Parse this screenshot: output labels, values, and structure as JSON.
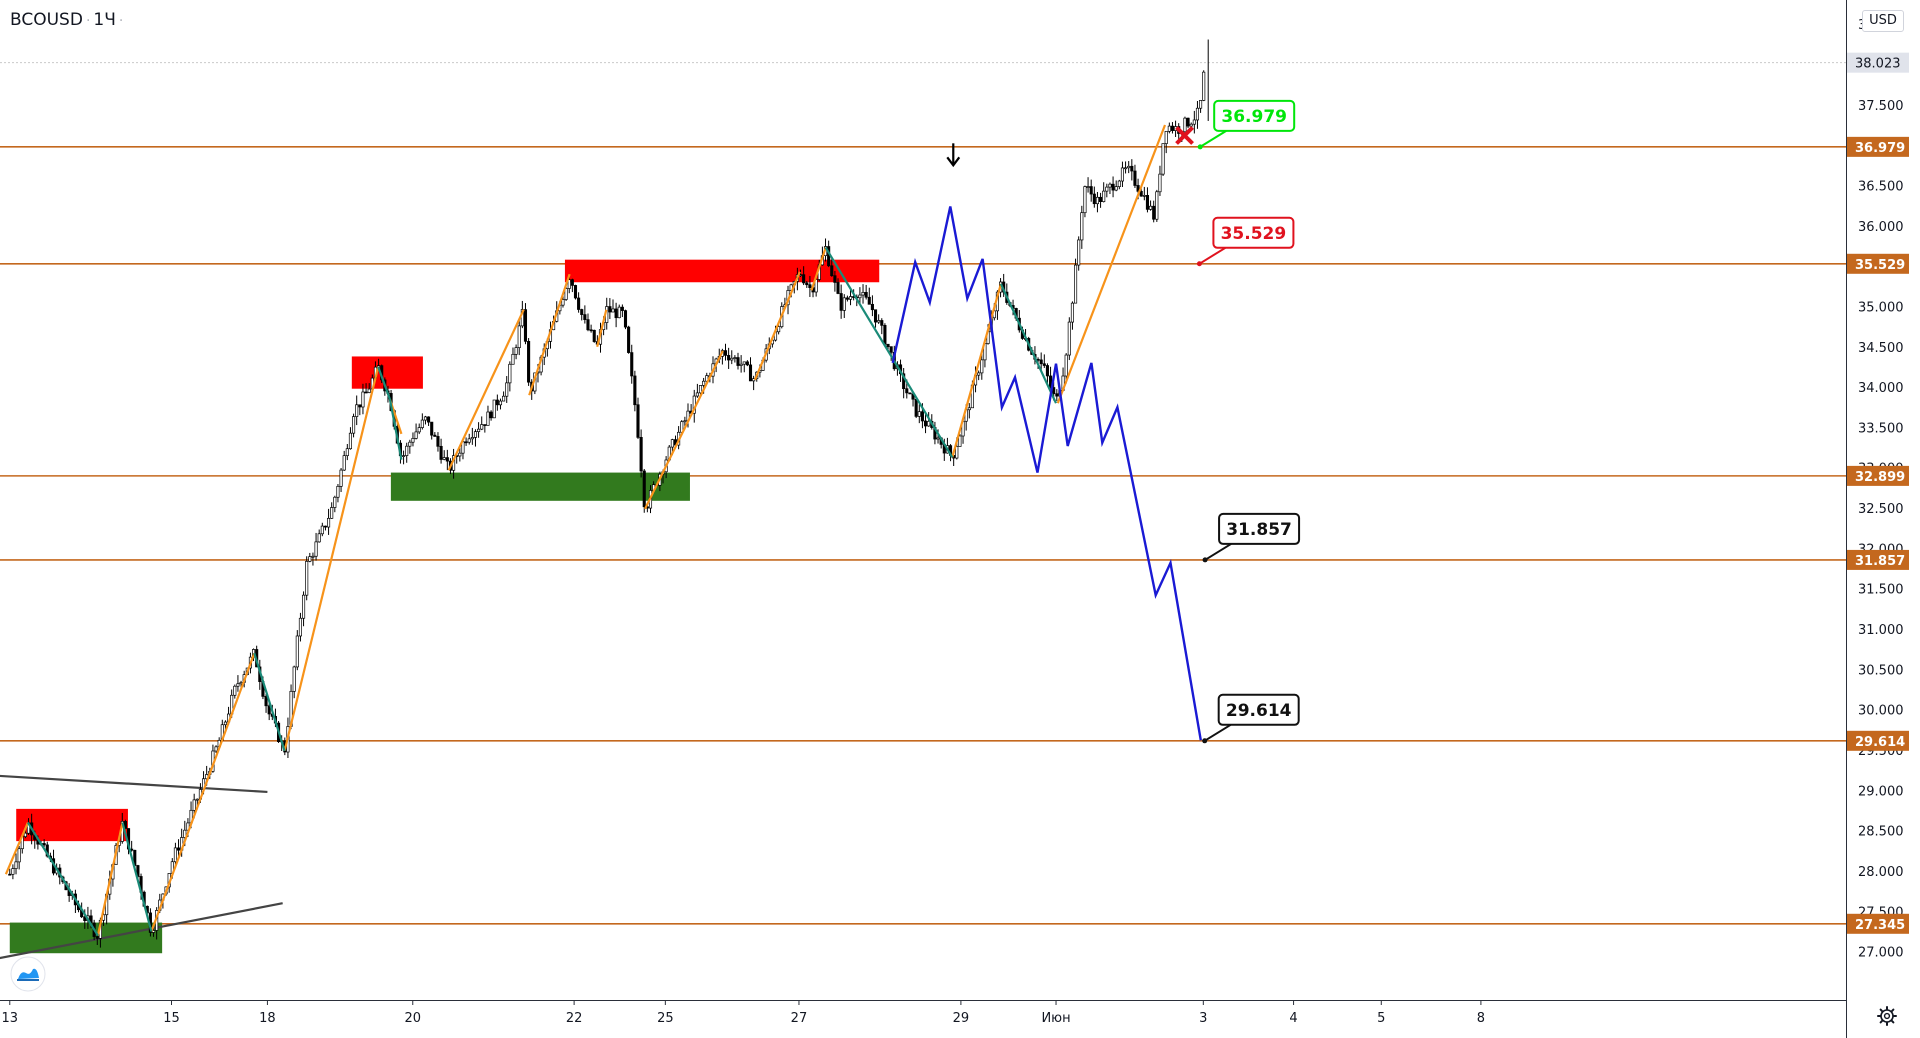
{
  "header": {
    "symbol": "BCOUSD",
    "interval": "1Ч",
    "currency": "USD"
  },
  "icons": {
    "logo": "tradingview-logo-icon",
    "settings": "gear-icon",
    "arrow": "arrow-down-icon",
    "cross": "cross-icon"
  },
  "colors": {
    "level": "#c4681e",
    "candle": "#000000",
    "up_wave": "#f7931a",
    "down_wave": "#1a8a78",
    "forecast": "#1a1ad4",
    "supply": "#ff0000",
    "demand": "#327a1e",
    "trend": "#444444",
    "current_price": "#c9c9c9",
    "label_green": "#00e60a",
    "label_red": "#e0121e",
    "label_black": "#111111"
  },
  "chart_data": {
    "type": "candlestick",
    "ylim": [
      26.4,
      38.8
    ],
    "y_ticks": [
      "27.000",
      "27.500",
      "28.000",
      "28.500",
      "29.000",
      "29.500",
      "30.000",
      "30.500",
      "31.000",
      "31.500",
      "32.000",
      "32.500",
      "33.000",
      "33.500",
      "34.000",
      "34.500",
      "35.000",
      "35.500",
      "36.000",
      "36.500",
      "37.000",
      "37.500",
      "38.000",
      "38.500"
    ],
    "x_ticks": [
      {
        "label": "13",
        "x": 0
      },
      {
        "label": "15",
        "x": 8.28
      },
      {
        "label": "18",
        "x": 13.19
      },
      {
        "label": "20",
        "x": 20.63
      },
      {
        "label": "22",
        "x": 28.89
      },
      {
        "label": "25",
        "x": 33.56
      },
      {
        "label": "27",
        "x": 40.4
      },
      {
        "label": "29",
        "x": 48.69
      },
      {
        "label": "Июн",
        "x": 53.56
      },
      {
        "label": "3",
        "x": 61.1
      },
      {
        "label": "4",
        "x": 65.72
      },
      {
        "label": "5",
        "x": 70.21
      },
      {
        "label": "8",
        "x": 75.31
      }
    ],
    "current_price": 38.023,
    "levels": [
      {
        "value": 36.979,
        "label": "36.979"
      },
      {
        "value": 35.529,
        "label": "35.529"
      },
      {
        "value": 32.899,
        "label": "32.899"
      },
      {
        "value": 31.857,
        "label": "31.857"
      },
      {
        "value": 29.614,
        "label": "29.614"
      },
      {
        "value": 27.345,
        "label": "27.345"
      }
    ],
    "zones": [
      {
        "kind": "supply",
        "x0": 0.33,
        "x1": 6.05,
        "y0": 28.37,
        "y1": 28.77
      },
      {
        "kind": "demand",
        "x0": 0.0,
        "x1": 7.8,
        "y0": 26.98,
        "y1": 27.36
      },
      {
        "kind": "supply",
        "x0": 17.51,
        "x1": 21.15,
        "y0": 33.98,
        "y1": 34.38
      },
      {
        "kind": "demand",
        "x0": 19.51,
        "x1": 34.82,
        "y0": 32.59,
        "y1": 32.94
      },
      {
        "kind": "supply",
        "x0": 28.42,
        "x1": 44.51,
        "y0": 35.3,
        "y1": 35.58
      }
    ],
    "trendlines": [
      {
        "points": [
          [
            -2.0,
            29.2
          ],
          [
            13.19,
            28.98
          ]
        ]
      },
      {
        "points": [
          [
            -2.0,
            26.85
          ],
          [
            13.97,
            27.6
          ]
        ]
      }
    ],
    "up_waves": [
      [
        [
          -0.2,
          27.96
        ],
        [
          0.93,
          28.6
        ]
      ],
      [
        [
          4.51,
          27.2
        ],
        [
          5.77,
          28.6
        ]
      ],
      [
        [
          7.25,
          27.25
        ],
        [
          12.52,
          30.7
        ]
      ],
      [
        [
          14.07,
          29.49
        ],
        [
          18.86,
          34.25
        ]
      ],
      [
        [
          19.46,
          33.85
        ],
        [
          20.05,
          33.42
        ]
      ],
      [
        [
          22.47,
          32.97
        ],
        [
          26.31,
          34.96
        ]
      ],
      [
        [
          26.59,
          33.9
        ],
        [
          28.66,
          35.4
        ]
      ],
      [
        [
          30.07,
          34.5
        ],
        [
          30.54,
          34.96
        ]
      ],
      [
        [
          32.52,
          32.49
        ],
        [
          36.5,
          34.45
        ]
      ],
      [
        [
          38.15,
          34.09
        ],
        [
          40.45,
          35.43
        ]
      ],
      [
        [
          41.04,
          35.2
        ],
        [
          41.77,
          35.73
        ]
      ],
      [
        [
          48.25,
          33.13
        ],
        [
          50.74,
          35.28
        ]
      ],
      [
        [
          53.65,
          33.8
        ],
        [
          59.14,
          37.25
        ]
      ]
    ],
    "down_waves": [
      [
        [
          0.93,
          28.6
        ],
        [
          4.51,
          27.2
        ]
      ],
      [
        [
          5.77,
          28.6
        ],
        [
          7.25,
          27.25
        ]
      ],
      [
        [
          12.52,
          30.7
        ],
        [
          14.07,
          29.49
        ]
      ],
      [
        [
          18.86,
          34.25
        ],
        [
          19.46,
          33.85
        ]
      ],
      [
        [
          19.46,
          33.85
        ],
        [
          20.05,
          33.1
        ]
      ],
      [
        [
          41.77,
          35.73
        ],
        [
          48.25,
          33.13
        ]
      ],
      [
        [
          50.74,
          35.28
        ],
        [
          53.56,
          33.8
        ]
      ]
    ],
    "forecast": [
      [
        45.2,
        34.3
      ],
      [
        46.35,
        35.55
      ],
      [
        47.1,
        35.05
      ],
      [
        48.15,
        36.24
      ],
      [
        49.02,
        35.1
      ],
      [
        49.8,
        35.59
      ],
      [
        50.79,
        33.75
      ],
      [
        51.46,
        34.12
      ],
      [
        52.61,
        32.94
      ],
      [
        53.56,
        34.29
      ],
      [
        54.16,
        33.27
      ],
      [
        55.37,
        34.3
      ],
      [
        55.93,
        33.31
      ],
      [
        56.7,
        33.75
      ],
      [
        58.66,
        31.42
      ],
      [
        59.42,
        31.82
      ],
      [
        60.97,
        29.62
      ]
    ],
    "arrow_x": 48.3,
    "arrow_y": 36.75,
    "cross_x": 60.14,
    "cross_y": 37.12,
    "callouts": [
      {
        "text": "36.979",
        "level": 36.979,
        "x": 60.94,
        "style": "green"
      },
      {
        "text": "35.529",
        "level": 35.529,
        "x": 60.9,
        "style": "red"
      },
      {
        "text": "31.857",
        "level": 31.857,
        "x": 61.19,
        "style": "black"
      },
      {
        "text": "29.614",
        "level": 29.614,
        "x": 61.17,
        "style": "black"
      }
    ],
    "price_path": [
      [
        0,
        27.96
      ],
      [
        0.93,
        28.6
      ],
      [
        2.1,
        28.1
      ],
      [
        3.3,
        27.6
      ],
      [
        4.51,
        27.2
      ],
      [
        5.2,
        28.0
      ],
      [
        5.77,
        28.6
      ],
      [
        6.6,
        27.9
      ],
      [
        7.25,
        27.25
      ],
      [
        8.28,
        28.1
      ],
      [
        9.6,
        28.9
      ],
      [
        10.7,
        29.6
      ],
      [
        11.6,
        30.3
      ],
      [
        12.52,
        30.7
      ],
      [
        13.19,
        30.0
      ],
      [
        14.07,
        29.49
      ],
      [
        14.6,
        30.6
      ],
      [
        15.2,
        31.8
      ],
      [
        15.8,
        32.1
      ],
      [
        16.5,
        32.5
      ],
      [
        17.1,
        33.1
      ],
      [
        17.6,
        33.7
      ],
      [
        18.2,
        33.9
      ],
      [
        18.86,
        34.25
      ],
      [
        19.46,
        33.85
      ],
      [
        20.05,
        33.1
      ],
      [
        20.63,
        33.4
      ],
      [
        21.3,
        33.6
      ],
      [
        22.47,
        32.97
      ],
      [
        23.4,
        33.4
      ],
      [
        24.4,
        33.6
      ],
      [
        25.4,
        34.0
      ],
      [
        26.31,
        34.96
      ],
      [
        26.59,
        33.9
      ],
      [
        27.3,
        34.4
      ],
      [
        28.0,
        34.9
      ],
      [
        28.66,
        35.4
      ],
      [
        29.4,
        34.8
      ],
      [
        30.07,
        34.5
      ],
      [
        30.54,
        34.96
      ],
      [
        31.4,
        34.9
      ],
      [
        32.1,
        33.6
      ],
      [
        32.52,
        32.49
      ],
      [
        33.56,
        33.1
      ],
      [
        34.6,
        33.6
      ],
      [
        35.6,
        34.1
      ],
      [
        36.5,
        34.45
      ],
      [
        37.4,
        34.3
      ],
      [
        38.15,
        34.09
      ],
      [
        39.0,
        34.6
      ],
      [
        39.8,
        35.1
      ],
      [
        40.45,
        35.43
      ],
      [
        41.04,
        35.2
      ],
      [
        41.77,
        35.73
      ],
      [
        42.5,
        35.0
      ],
      [
        43.3,
        35.2
      ],
      [
        44.1,
        35.0
      ],
      [
        44.8,
        34.6
      ],
      [
        45.6,
        34.1
      ],
      [
        46.4,
        33.7
      ],
      [
        47.4,
        33.4
      ],
      [
        48.25,
        33.13
      ],
      [
        49.0,
        33.7
      ],
      [
        49.9,
        34.5
      ],
      [
        50.74,
        35.28
      ],
      [
        51.4,
        34.9
      ],
      [
        52.2,
        34.5
      ],
      [
        53.0,
        34.2
      ],
      [
        53.56,
        33.8
      ],
      [
        54.0,
        34.3
      ],
      [
        54.5,
        35.3
      ],
      [
        55.0,
        36.5
      ],
      [
        55.7,
        36.3
      ],
      [
        56.4,
        36.5
      ],
      [
        57.2,
        36.7
      ],
      [
        58.0,
        36.4
      ],
      [
        58.6,
        36.1
      ],
      [
        59.14,
        37.25
      ],
      [
        59.8,
        37.2
      ],
      [
        60.4,
        37.3
      ],
      [
        60.9,
        37.4
      ],
      [
        61.2,
        38.02
      ]
    ]
  }
}
